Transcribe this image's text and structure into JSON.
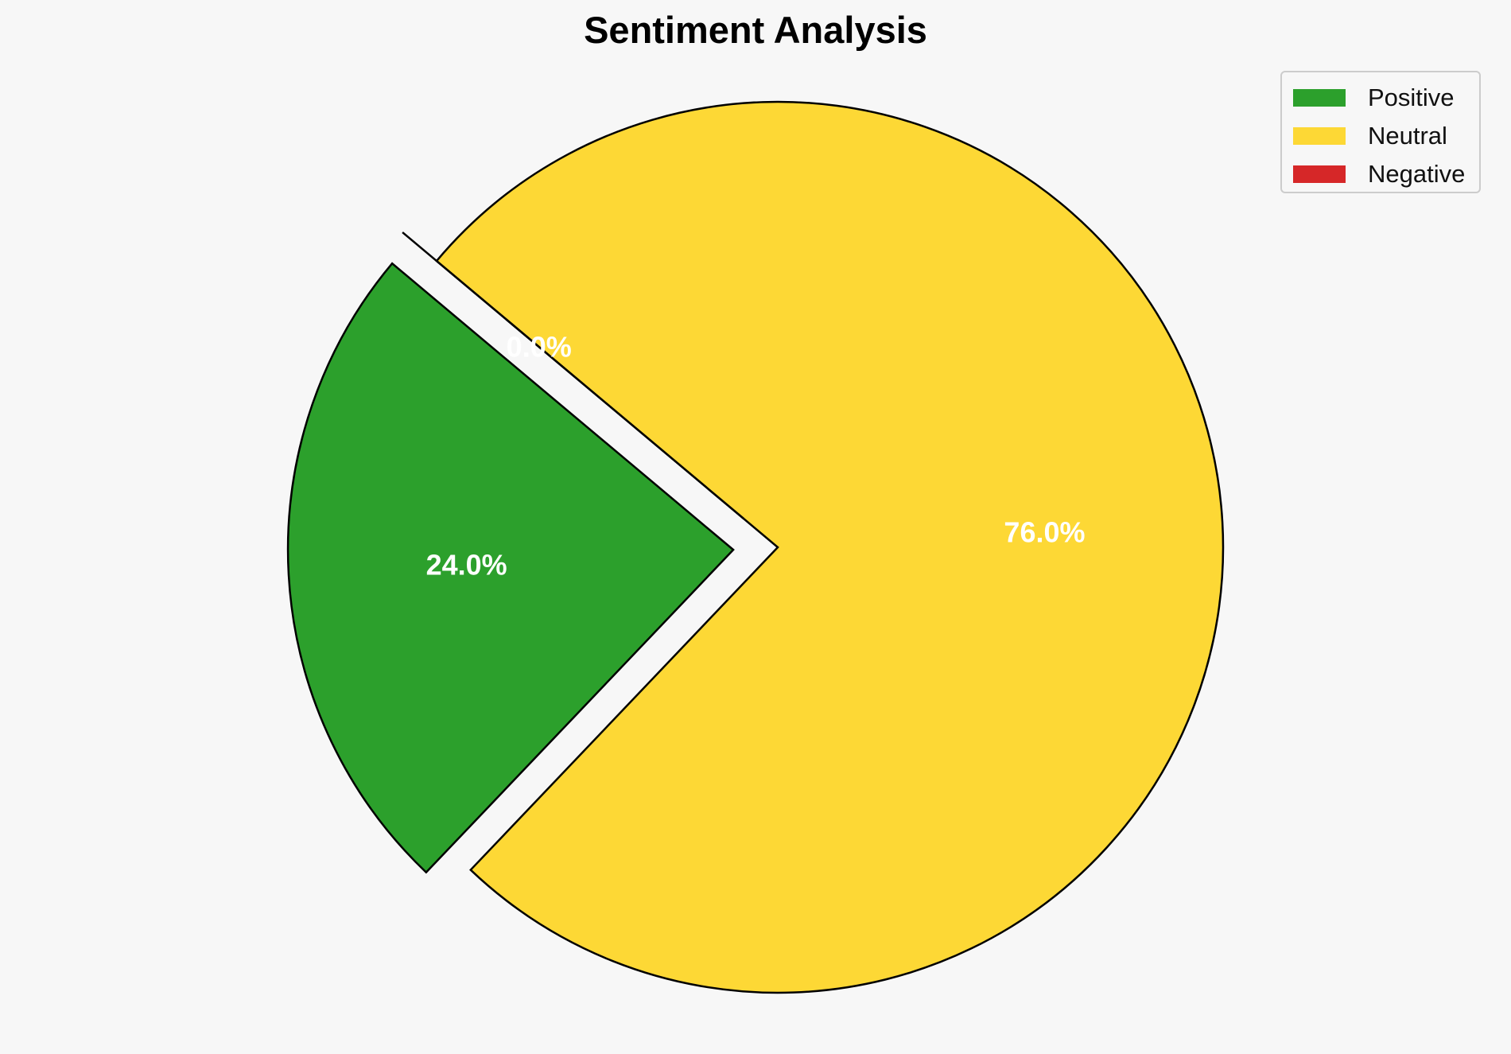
{
  "chart_data": {
    "type": "pie",
    "title": "Sentiment Analysis",
    "slices": [
      {
        "label": "Positive",
        "value": 24.0,
        "pct_label": "24.0%",
        "color": "#2ca02c",
        "exploded": true
      },
      {
        "label": "Neutral",
        "value": 76.0,
        "pct_label": "76.0%",
        "color": "#fdd835",
        "exploded": false
      },
      {
        "label": "Negative",
        "value": 0.0,
        "pct_label": "0.0%",
        "color": "#d62728",
        "exploded": true
      }
    ],
    "start_angle_deg": 140,
    "direction": "counterclockwise",
    "legend": {
      "position": "top-right",
      "entries": [
        "Positive",
        "Neutral",
        "Negative"
      ]
    },
    "label_color": "#ffffff",
    "edge_color": "#000000"
  }
}
